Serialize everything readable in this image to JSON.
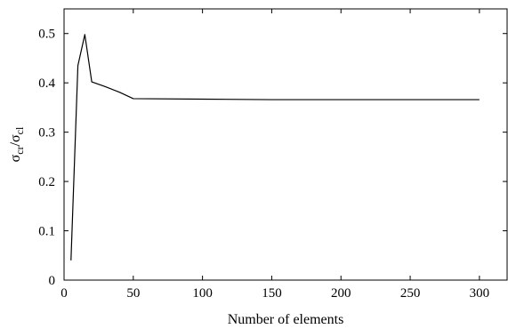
{
  "chart_data": {
    "type": "line",
    "xlabel": "Number of elements",
    "ylabel_base": "σ",
    "ylabel_sub_num": "cr",
    "ylabel_sep": "/",
    "ylabel_sub_den": "cl",
    "xlim": [
      0,
      320
    ],
    "ylim": [
      0,
      0.55
    ],
    "xticks": [
      0,
      50,
      100,
      150,
      200,
      250,
      300
    ],
    "yticks": [
      0,
      0.1,
      0.2,
      0.3,
      0.4,
      0.5
    ],
    "xtick_labels": [
      "0",
      "50",
      "100",
      "150",
      "200",
      "250",
      "300"
    ],
    "ytick_labels": [
      "0",
      "0.1",
      "0.2",
      "0.3",
      "0.4",
      "0.5"
    ],
    "grid": false,
    "line_color": "#000000",
    "series": [
      {
        "x": [
          5,
          10,
          15,
          20,
          30,
          40,
          50,
          100,
          150,
          200,
          250,
          300
        ],
        "y": [
          0.04,
          0.435,
          0.498,
          0.402,
          0.392,
          0.381,
          0.368,
          0.367,
          0.366,
          0.366,
          0.366,
          0.366
        ]
      }
    ]
  }
}
